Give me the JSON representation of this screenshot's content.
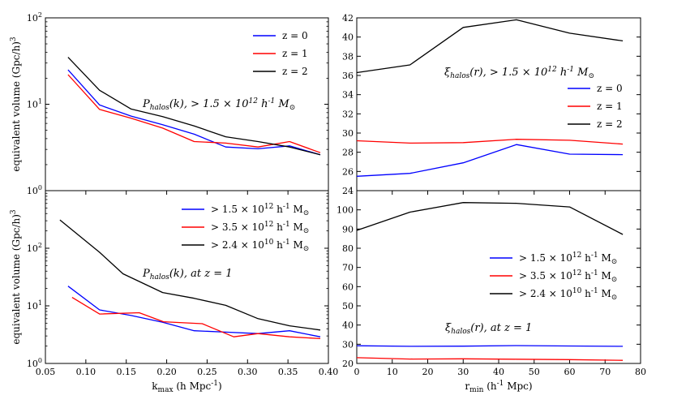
{
  "chart_data": [
    {
      "id": "tl",
      "type": "line",
      "xscale": "linear",
      "yscale": "log",
      "xlim": [
        0.05,
        0.4
      ],
      "ylim": [
        1,
        100
      ],
      "ylabel": "equivalent volume (Gpc/h)^3",
      "xlabel": "",
      "yticks": [
        1,
        10,
        100
      ],
      "ytick_labels": [
        "10^0",
        "10^1",
        "10^2"
      ],
      "xticks": [],
      "xtick_labels": [],
      "title": "P_halos(k), > 1.5 × 10^12 h^-1 M_⊙",
      "legend_position": "top-right",
      "series": [
        {
          "name": "z = 0",
          "color": "#0000ff",
          "x": [
            0.078,
            0.117,
            0.156,
            0.195,
            0.234,
            0.273,
            0.313,
            0.352,
            0.39
          ],
          "y": [
            25,
            9.8,
            7.3,
            5.8,
            4.5,
            3.2,
            3.05,
            3.3,
            2.6
          ]
        },
        {
          "name": "z = 1",
          "color": "#ff0000",
          "x": [
            0.078,
            0.117,
            0.156,
            0.195,
            0.234,
            0.273,
            0.313,
            0.352,
            0.39
          ],
          "y": [
            22,
            8.7,
            6.9,
            5.3,
            3.7,
            3.55,
            3.2,
            3.7,
            2.75
          ]
        },
        {
          "name": "z = 2",
          "color": "#000000",
          "x": [
            0.078,
            0.117,
            0.156,
            0.195,
            0.234,
            0.273,
            0.313,
            0.352,
            0.39
          ],
          "y": [
            35,
            14.5,
            8.8,
            7.2,
            5.6,
            4.2,
            3.7,
            3.2,
            2.6
          ]
        }
      ]
    },
    {
      "id": "tr",
      "type": "line",
      "xscale": "linear",
      "yscale": "linear",
      "xlim": [
        0,
        80
      ],
      "ylim": [
        24,
        42
      ],
      "ylabel": "",
      "xlabel": "",
      "yticks": [
        24,
        26,
        28,
        30,
        32,
        34,
        36,
        38,
        40,
        42
      ],
      "ytick_labels": [
        "24",
        "26",
        "28",
        "30",
        "32",
        "34",
        "36",
        "38",
        "40",
        "42"
      ],
      "xticks": [],
      "xtick_labels": [],
      "title": "ξ_halos(r), > 1.5 × 10^12 h^-1 M_⊙",
      "legend_position": "center-right",
      "series": [
        {
          "name": "z = 0",
          "color": "#0000ff",
          "x": [
            0,
            15,
            30,
            45,
            60,
            75
          ],
          "y": [
            25.5,
            25.8,
            26.9,
            28.8,
            27.8,
            27.75
          ]
        },
        {
          "name": "z = 1",
          "color": "#ff0000",
          "x": [
            0,
            15,
            30,
            45,
            60,
            75
          ],
          "y": [
            29.2,
            28.95,
            29.0,
            29.35,
            29.25,
            28.85
          ]
        },
        {
          "name": "z = 2",
          "color": "#000000",
          "x": [
            0,
            15,
            30,
            45,
            60,
            75
          ],
          "y": [
            36.3,
            37.1,
            41.0,
            41.8,
            40.4,
            39.6
          ]
        }
      ]
    },
    {
      "id": "bl",
      "type": "line",
      "xscale": "linear",
      "yscale": "log",
      "xlim": [
        0.05,
        0.4
      ],
      "ylim": [
        1,
        1000
      ],
      "ylabel": "equivalent volume (Gpc/h)^3",
      "xlabel": "k_max (h Mpc^-1)",
      "yticks": [
        1,
        10,
        100
      ],
      "ytick_labels": [
        "10^0",
        "10^1",
        "10^2"
      ],
      "xticks": [
        0.05,
        0.1,
        0.15,
        0.2,
        0.25,
        0.3,
        0.35,
        0.4
      ],
      "xtick_labels": [
        "0.05",
        "0.10",
        "0.15",
        "0.20",
        "0.25",
        "0.30",
        "0.35",
        "0.40"
      ],
      "title": "P_halos(k),  at z = 1",
      "legend_position": "top-right",
      "series": [
        {
          "name": "> 1.5 × 10^12 h^-1 M_⊙",
          "color": "#0000ff",
          "x": [
            0.078,
            0.117,
            0.156,
            0.195,
            0.234,
            0.273,
            0.313,
            0.352,
            0.39
          ],
          "y": [
            22,
            8.5,
            6.8,
            5.2,
            3.7,
            3.5,
            3.3,
            3.7,
            2.9
          ]
        },
        {
          "name": "> 3.5 × 10^12 h^-1 M_⊙",
          "color": "#ff0000",
          "x": [
            0.083,
            0.117,
            0.166,
            0.196,
            0.244,
            0.283,
            0.313,
            0.352,
            0.39
          ],
          "y": [
            14,
            7.2,
            7.6,
            5.3,
            4.9,
            2.9,
            3.3,
            2.9,
            2.7
          ]
        },
        {
          "name": "> 2.4 × 10^10 h^-1 M_⊙",
          "color": "#000000",
          "x": [
            0.068,
            0.117,
            0.146,
            0.195,
            0.234,
            0.273,
            0.313,
            0.352,
            0.39
          ],
          "y": [
            310,
            85,
            36,
            17,
            13.5,
            10.2,
            6.0,
            4.5,
            3.8
          ]
        }
      ]
    },
    {
      "id": "br",
      "type": "line",
      "xscale": "linear",
      "yscale": "linear",
      "xlim": [
        0,
        80
      ],
      "ylim": [
        20,
        110
      ],
      "ylabel": "",
      "xlabel": "r_min (h^-1 Mpc)",
      "yticks": [
        20,
        30,
        40,
        50,
        60,
        70,
        80,
        90,
        100
      ],
      "ytick_labels": [
        "20",
        "30",
        "40",
        "50",
        "60",
        "70",
        "80",
        "90",
        "100"
      ],
      "xticks": [
        0,
        10,
        20,
        30,
        40,
        50,
        60,
        70,
        80
      ],
      "xtick_labels": [
        "0",
        "10",
        "20",
        "30",
        "40",
        "50",
        "60",
        "70",
        "80"
      ],
      "title": "ξ_halos(r),  at z = 1",
      "legend_position": "center-right",
      "series": [
        {
          "name": "> 1.5 × 10^12 h^-1 M_⊙",
          "color": "#0000ff",
          "x": [
            0,
            15,
            30,
            45,
            60,
            75
          ],
          "y": [
            29.2,
            28.9,
            29.0,
            29.3,
            29.1,
            28.9
          ]
        },
        {
          "name": "> 3.5 × 10^12 h^-1 M_⊙",
          "color": "#ff0000",
          "x": [
            0,
            15,
            30,
            45,
            60,
            75
          ],
          "y": [
            23.0,
            22.3,
            22.4,
            22.2,
            22.0,
            21.6
          ]
        },
        {
          "name": "> 2.4 × 10^10 h^-1 M_⊙",
          "color": "#000000",
          "x": [
            0,
            15,
            30,
            45,
            60,
            75
          ],
          "y": [
            89.3,
            98.8,
            103.8,
            103.4,
            101.5,
            87.2
          ]
        }
      ]
    }
  ]
}
